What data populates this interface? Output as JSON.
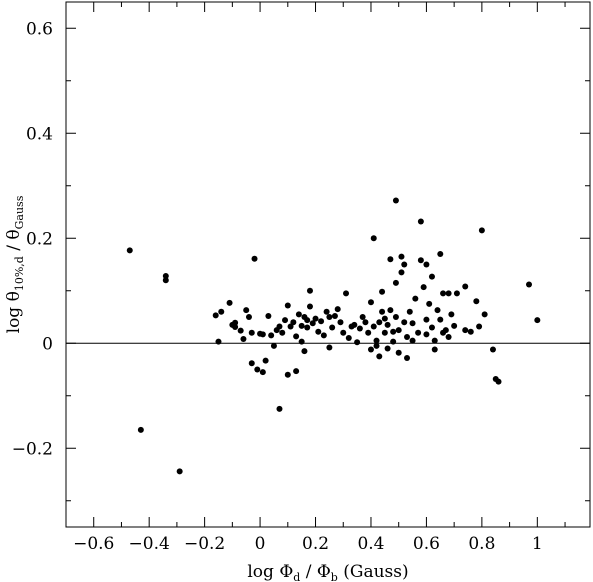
{
  "chart_data": {
    "type": "scatter",
    "xlabel": {
      "main": "log Φ",
      "sub1": "d",
      "mid": " / Φ",
      "sub2": "b",
      "tail": " (Gauss)"
    },
    "ylabel": {
      "main": "log θ",
      "sub1": "10%,d",
      "mid": " / θ",
      "sub2": "Gauss"
    },
    "xlim": [
      -0.7,
      1.19
    ],
    "ylim": [
      -0.35,
      0.65
    ],
    "xticks": [
      -0.6,
      -0.4,
      -0.2,
      0,
      0.2,
      0.4,
      0.6,
      0.8,
      1
    ],
    "xtick_labels": [
      "−0.6",
      "−0.4",
      "−0.2",
      "0",
      "0.2",
      "0.4",
      "0.6",
      "0.8",
      "1"
    ],
    "yticks": [
      -0.2,
      0,
      0.2,
      0.4,
      0.6
    ],
    "ytick_labels": [
      "−0.2",
      "0",
      "0.2",
      "0.4",
      "0.6"
    ],
    "reference_line_y": 0,
    "grid": false,
    "color": "#000000",
    "points": [
      [
        -0.47,
        0.177
      ],
      [
        -0.43,
        -0.165
      ],
      [
        -0.34,
        0.128
      ],
      [
        -0.34,
        0.12
      ],
      [
        -0.29,
        -0.244
      ],
      [
        -0.16,
        0.053
      ],
      [
        -0.15,
        0.003
      ],
      [
        -0.14,
        0.06
      ],
      [
        -0.11,
        0.077
      ],
      [
        -0.1,
        0.035
      ],
      [
        -0.09,
        0.039
      ],
      [
        -0.09,
        0.031
      ],
      [
        -0.07,
        0.024
      ],
      [
        -0.06,
        0.008
      ],
      [
        -0.05,
        0.063
      ],
      [
        -0.04,
        0.05
      ],
      [
        -0.03,
        0.02
      ],
      [
        -0.03,
        -0.038
      ],
      [
        -0.02,
        0.161
      ],
      [
        -0.01,
        -0.05
      ],
      [
        0,
        0.018
      ],
      [
        0.01,
        0.017
      ],
      [
        0.01,
        -0.055
      ],
      [
        0.02,
        -0.033
      ],
      [
        0.03,
        0.052
      ],
      [
        0.04,
        0.015
      ],
      [
        0.05,
        -0.005
      ],
      [
        0.06,
        0.025
      ],
      [
        0.07,
        0.032
      ],
      [
        0.07,
        -0.125
      ],
      [
        0.08,
        0.02
      ],
      [
        0.09,
        0.044
      ],
      [
        0.1,
        0.072
      ],
      [
        0.1,
        -0.06
      ],
      [
        0.11,
        0.032
      ],
      [
        0.12,
        0.04
      ],
      [
        0.13,
        0.013
      ],
      [
        0.13,
        -0.053
      ],
      [
        0.14,
        0.055
      ],
      [
        0.15,
        0.033
      ],
      [
        0.15,
        0.003
      ],
      [
        0.16,
        0.05
      ],
      [
        0.16,
        -0.015
      ],
      [
        0.17,
        0.044
      ],
      [
        0.17,
        0.03
      ],
      [
        0.18,
        0.1
      ],
      [
        0.18,
        0.07
      ],
      [
        0.19,
        0.038
      ],
      [
        0.2,
        0.047
      ],
      [
        0.21,
        0.022
      ],
      [
        0.22,
        0.042
      ],
      [
        0.23,
        0.015
      ],
      [
        0.24,
        0.06
      ],
      [
        0.25,
        0.05
      ],
      [
        0.25,
        -0.008
      ],
      [
        0.26,
        0.03
      ],
      [
        0.27,
        0.052
      ],
      [
        0.28,
        0.065
      ],
      [
        0.29,
        0.04
      ],
      [
        0.3,
        0.02
      ],
      [
        0.31,
        0.095
      ],
      [
        0.32,
        0.01
      ],
      [
        0.33,
        0.032
      ],
      [
        0.34,
        0.035
      ],
      [
        0.35,
        0.002
      ],
      [
        0.36,
        0.028
      ],
      [
        0.37,
        0.05
      ],
      [
        0.38,
        0.04
      ],
      [
        0.39,
        0.02
      ],
      [
        0.4,
        0.078
      ],
      [
        0.4,
        -0.012
      ],
      [
        0.41,
        0.2
      ],
      [
        0.41,
        0.032
      ],
      [
        0.42,
        0.005
      ],
      [
        0.42,
        -0.005
      ],
      [
        0.43,
        0.04
      ],
      [
        0.43,
        -0.025
      ],
      [
        0.44,
        0.098
      ],
      [
        0.44,
        0.06
      ],
      [
        0.45,
        0.02
      ],
      [
        0.45,
        0.047
      ],
      [
        0.46,
        0.035
      ],
      [
        0.46,
        -0.01
      ],
      [
        0.47,
        0.16
      ],
      [
        0.47,
        0.063
      ],
      [
        0.48,
        0.022
      ],
      [
        0.48,
        0.003
      ],
      [
        0.49,
        0.272
      ],
      [
        0.49,
        0.115
      ],
      [
        0.49,
        0.05
      ],
      [
        0.5,
        0.025
      ],
      [
        0.5,
        -0.018
      ],
      [
        0.51,
        0.135
      ],
      [
        0.51,
        0.165
      ],
      [
        0.52,
        0.15
      ],
      [
        0.52,
        0.04
      ],
      [
        0.53,
        0.012
      ],
      [
        0.53,
        -0.028
      ],
      [
        0.54,
        0.06
      ],
      [
        0.55,
        0.038
      ],
      [
        0.55,
        0.005
      ],
      [
        0.56,
        0.085
      ],
      [
        0.57,
        0.02
      ],
      [
        0.58,
        0.232
      ],
      [
        0.58,
        0.158
      ],
      [
        0.59,
        0.107
      ],
      [
        0.6,
        0.15
      ],
      [
        0.6,
        0.045
      ],
      [
        0.6,
        0.017
      ],
      [
        0.61,
        0.075
      ],
      [
        0.62,
        0.127
      ],
      [
        0.62,
        0.03
      ],
      [
        0.63,
        0.005
      ],
      [
        0.63,
        -0.012
      ],
      [
        0.64,
        0.063
      ],
      [
        0.65,
        0.17
      ],
      [
        0.65,
        0.045
      ],
      [
        0.66,
        0.02
      ],
      [
        0.66,
        0.095
      ],
      [
        0.67,
        0.025
      ],
      [
        0.68,
        0.012
      ],
      [
        0.68,
        0.095
      ],
      [
        0.69,
        0.055
      ],
      [
        0.7,
        0.033
      ],
      [
        0.71,
        0.095
      ],
      [
        0.74,
        0.108
      ],
      [
        0.74,
        0.025
      ],
      [
        0.76,
        0.022
      ],
      [
        0.78,
        0.08
      ],
      [
        0.79,
        0.032
      ],
      [
        0.8,
        0.215
      ],
      [
        0.81,
        0.055
      ],
      [
        0.84,
        -0.012
      ],
      [
        0.85,
        -0.068
      ],
      [
        0.86,
        -0.073
      ],
      [
        0.97,
        0.112
      ],
      [
        1.0,
        0.044
      ]
    ]
  }
}
